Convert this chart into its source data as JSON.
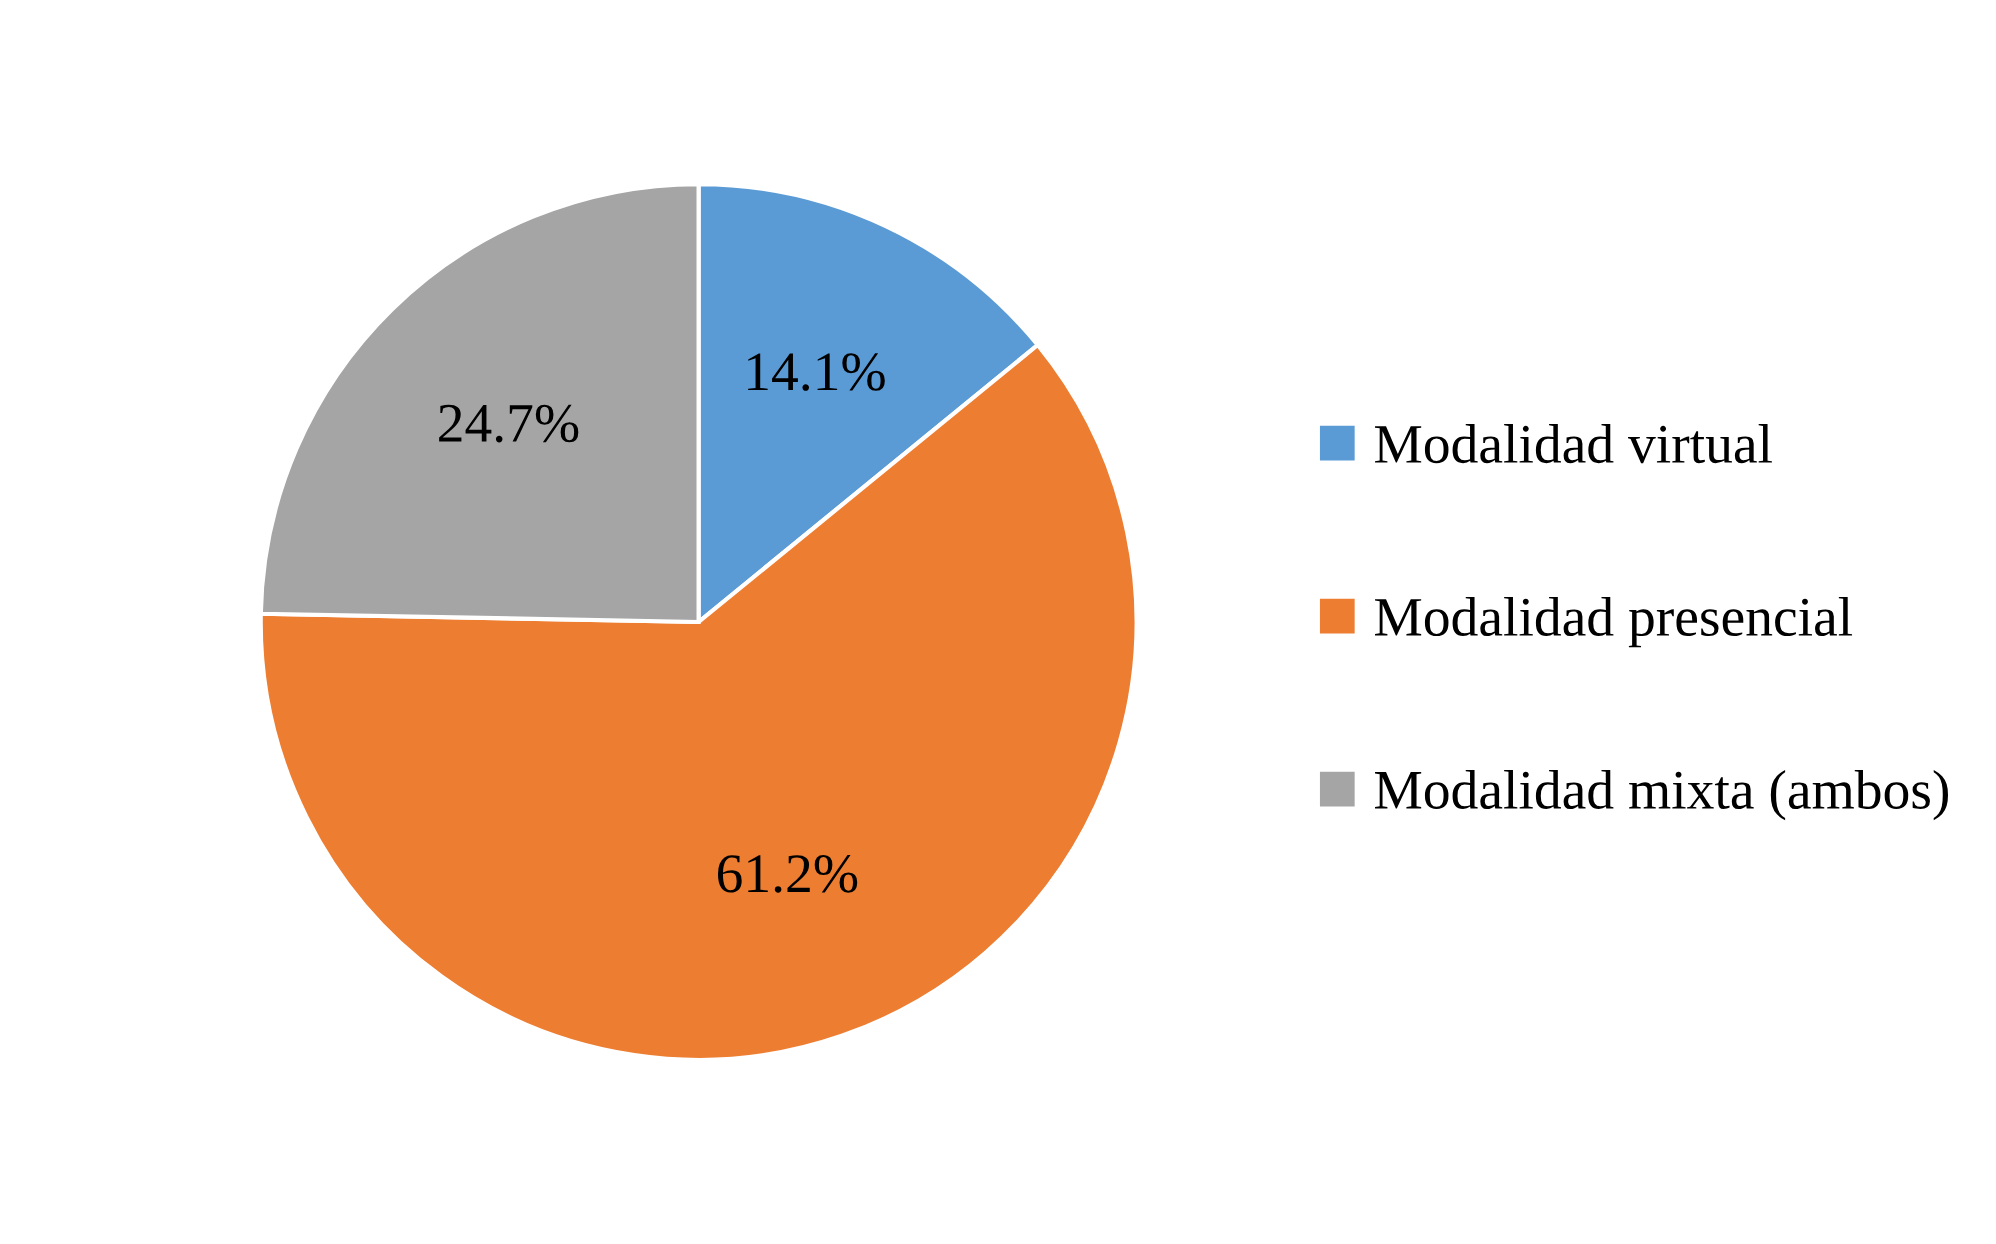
{
  "chart_data": {
    "type": "pie",
    "categories": [
      "Modalidad virtual",
      "Modalidad presencial",
      "Modalidad mixta (ambos)"
    ],
    "values": [
      14.1,
      61.2,
      24.7
    ],
    "colors": [
      "#5b9bd5",
      "#ed7d31",
      "#a5a5a5"
    ],
    "value_labels": [
      "14.1%",
      "61.2%",
      "24.7%"
    ],
    "legend": "right"
  }
}
